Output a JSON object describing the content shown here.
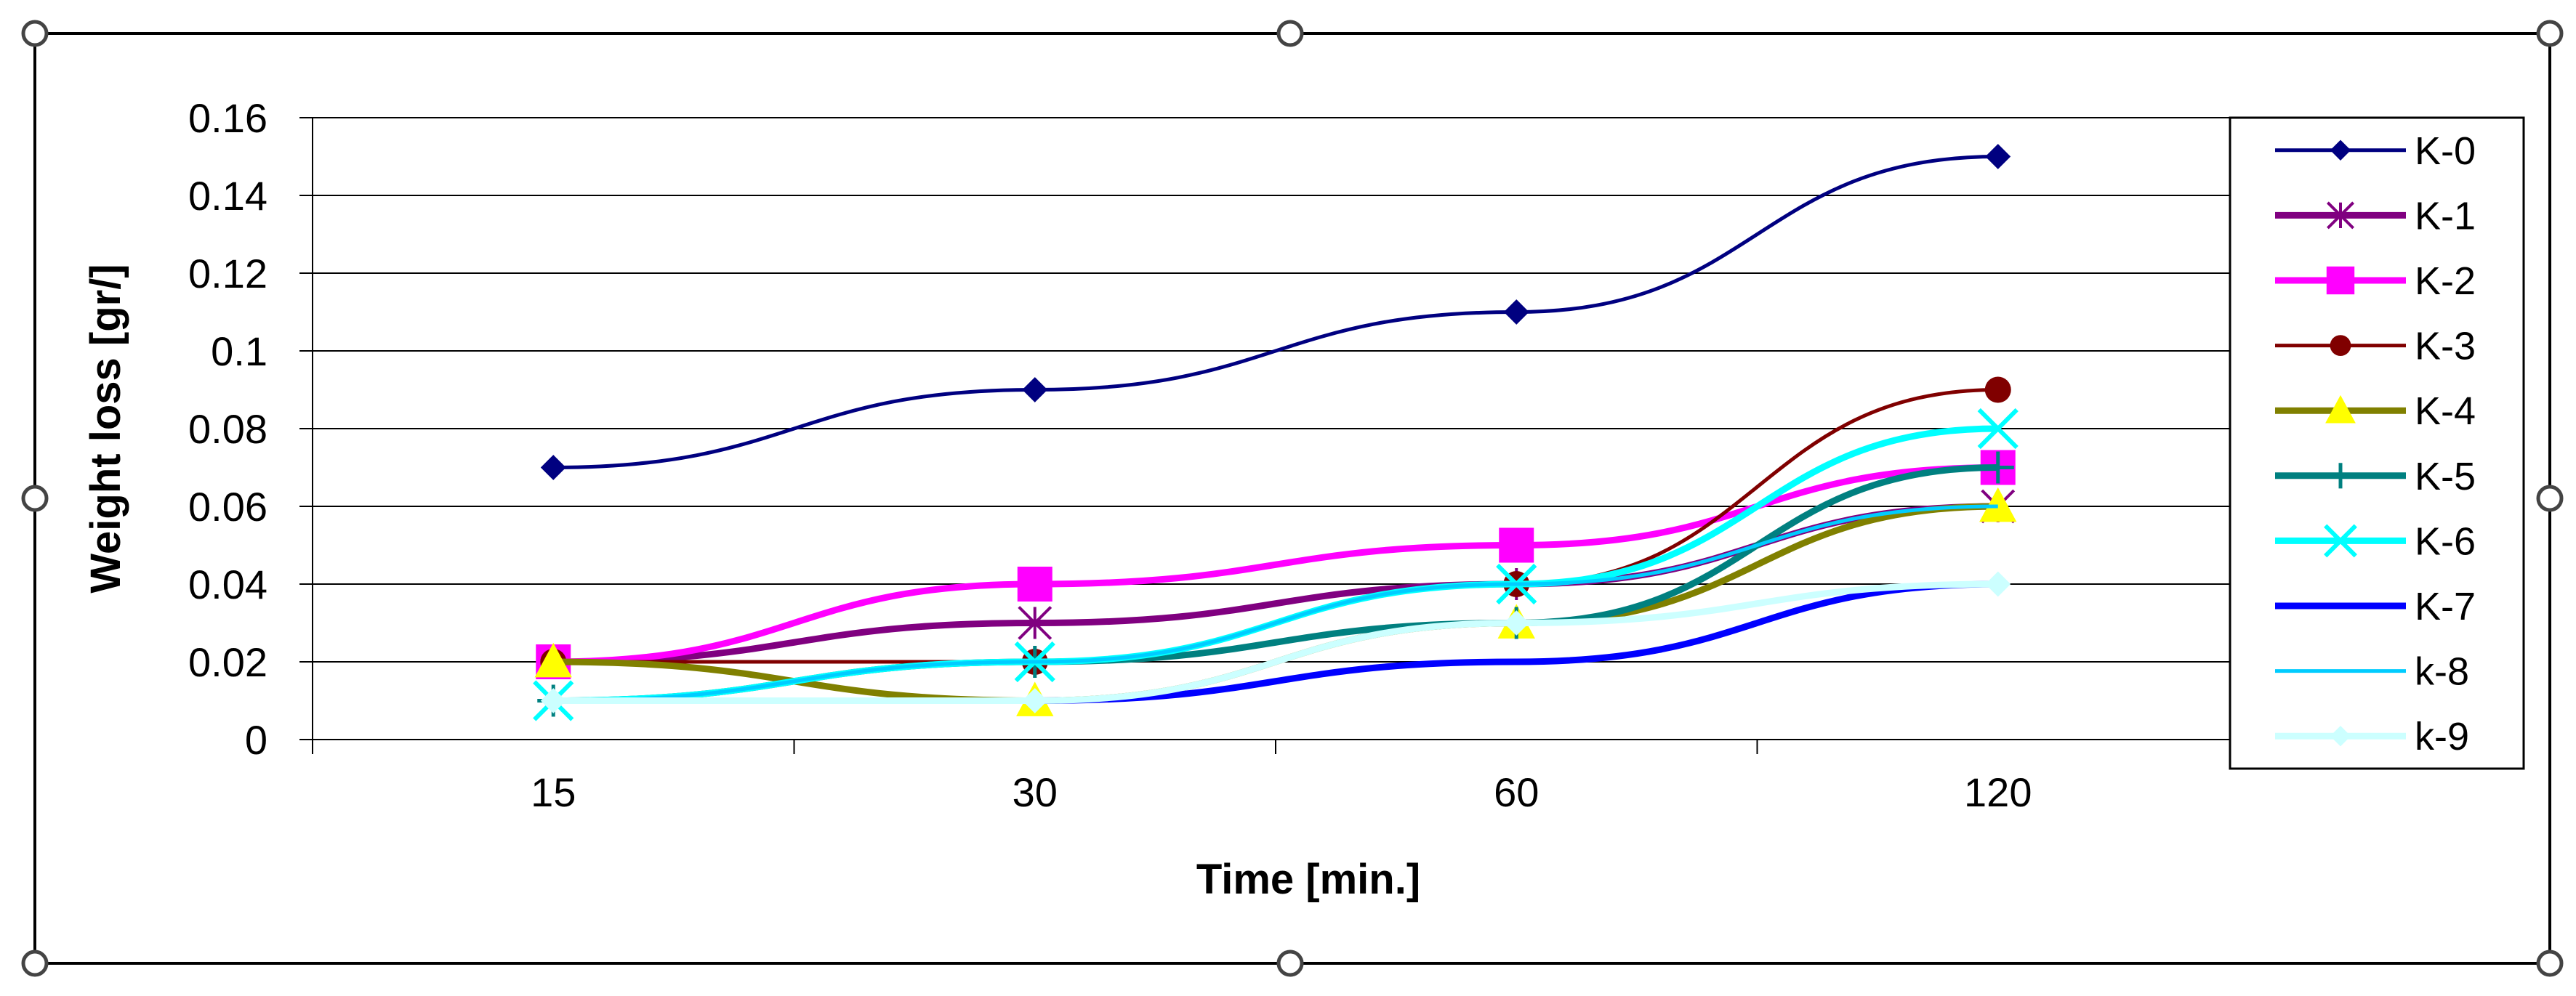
{
  "chart_data": {
    "type": "line",
    "categories": [
      "15",
      "30",
      "60",
      "120"
    ],
    "xlabel": "Time [min.]",
    "ylabel": "Weight loss [gr/]",
    "ylim": [
      0,
      0.16
    ],
    "yticks": [
      "0",
      "0.02",
      "0.04",
      "0.06",
      "0.08",
      "0.1",
      "0.12",
      "0.14",
      "0.16"
    ],
    "grid": true,
    "legend_position": "right",
    "series": [
      {
        "name": "K-0",
        "values": [
          0.07,
          0.09,
          0.11,
          0.15
        ],
        "color": "#000080",
        "marker": "diamond"
      },
      {
        "name": "K-1",
        "values": [
          0.02,
          0.03,
          0.04,
          0.06
        ],
        "color": "#800080",
        "marker": "star"
      },
      {
        "name": "K-2",
        "values": [
          0.02,
          0.04,
          0.05,
          0.07
        ],
        "color": "#FF00FF",
        "marker": "square"
      },
      {
        "name": "K-3",
        "values": [
          0.02,
          0.02,
          0.04,
          0.09
        ],
        "color": "#800000",
        "marker": "circle"
      },
      {
        "name": "K-4",
        "values": [
          0.02,
          0.01,
          0.03,
          0.06
        ],
        "color": "#808000",
        "marker": "triangle",
        "marker_fill": "#FFFF00"
      },
      {
        "name": "K-5",
        "values": [
          0.01,
          0.02,
          0.03,
          0.07
        ],
        "color": "#008080",
        "marker": "plus"
      },
      {
        "name": "K-6",
        "values": [
          0.01,
          0.02,
          0.04,
          0.08
        ],
        "color": "#00FFFF",
        "marker": "x"
      },
      {
        "name": "K-7",
        "values": [
          0.01,
          0.01,
          0.02,
          0.04
        ],
        "color": "#0000FF",
        "marker": "none"
      },
      {
        "name": "k-8",
        "values": [
          0.01,
          0.02,
          0.04,
          0.06
        ],
        "color": "#00CCFF",
        "marker": "none"
      },
      {
        "name": "k-9",
        "values": [
          0.01,
          0.01,
          0.03,
          0.04
        ],
        "color": "#CCFFFF",
        "marker": "diamond"
      }
    ]
  }
}
